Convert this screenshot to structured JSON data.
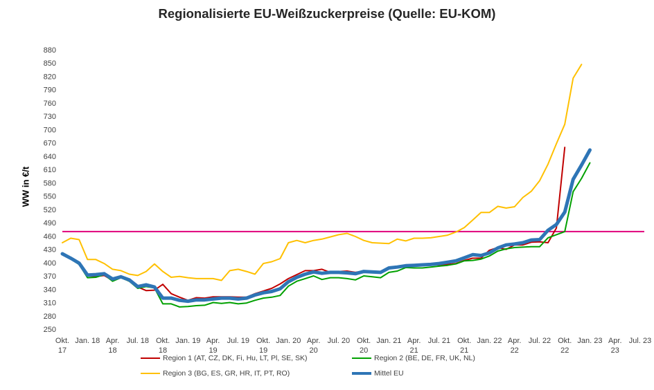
{
  "chart_data": {
    "type": "line",
    "title": "Regionalisierte EU-Weißzuckerpreise (Quelle: EU-KOM)",
    "ylabel": "WW in €/t",
    "ylim": [
      250,
      880
    ],
    "yticks": [
      250,
      280,
      310,
      340,
      370,
      400,
      430,
      460,
      490,
      520,
      550,
      580,
      610,
      640,
      670,
      700,
      730,
      760,
      790,
      820,
      850,
      880
    ],
    "xlim": [
      0,
      69
    ],
    "xticks": [
      {
        "pos": 0,
        "line1": "Okt.",
        "line2": "17"
      },
      {
        "pos": 3,
        "line1": "Jan. 18",
        "line2": ""
      },
      {
        "pos": 6,
        "line1": "Apr.",
        "line2": "18"
      },
      {
        "pos": 9,
        "line1": "Jul. 18",
        "line2": ""
      },
      {
        "pos": 12,
        "line1": "Okt.",
        "line2": "18"
      },
      {
        "pos": 15,
        "line1": "Jan. 19",
        "line2": ""
      },
      {
        "pos": 18,
        "line1": "Apr.",
        "line2": "19"
      },
      {
        "pos": 21,
        "line1": "Jul. 19",
        "line2": ""
      },
      {
        "pos": 24,
        "line1": "Okt.",
        "line2": "19"
      },
      {
        "pos": 27,
        "line1": "Jan. 20",
        "line2": ""
      },
      {
        "pos": 30,
        "line1": "Apr.",
        "line2": "20"
      },
      {
        "pos": 33,
        "line1": "Jul. 20",
        "line2": ""
      },
      {
        "pos": 36,
        "line1": "Okt.",
        "line2": "20"
      },
      {
        "pos": 39,
        "line1": "Jan. 21",
        "line2": ""
      },
      {
        "pos": 42,
        "line1": "Apr.",
        "line2": "21"
      },
      {
        "pos": 45,
        "line1": "Jul. 21",
        "line2": ""
      },
      {
        "pos": 48,
        "line1": "Okt.",
        "line2": "21"
      },
      {
        "pos": 51,
        "line1": "Jan. 22",
        "line2": ""
      },
      {
        "pos": 54,
        "line1": "Apr.",
        "line2": "22"
      },
      {
        "pos": 57,
        "line1": "Jul. 22",
        "line2": ""
      },
      {
        "pos": 60,
        "line1": "Okt.",
        "line2": "22"
      },
      {
        "pos": 63,
        "line1": "Jan. 23",
        "line2": ""
      },
      {
        "pos": 66,
        "line1": "Apr.",
        "line2": "23"
      },
      {
        "pos": 69,
        "line1": "Jul. 23",
        "line2": ""
      }
    ],
    "reference_line": {
      "value": 470,
      "color": "#e0007a"
    },
    "series": [
      {
        "name": "Region 1 (AT, CZ, DK, Fi, Hu, LT, Pl, SE, SK)",
        "color": "#c00000",
        "width": 2,
        "values": [
          420,
          410,
          401,
          370,
          369,
          371,
          360,
          367,
          358,
          345,
          337,
          338,
          351,
          330,
          322,
          315,
          321,
          320,
          323,
          323,
          323,
          322,
          322,
          330,
          336,
          342,
          352,
          364,
          373,
          382,
          382,
          385,
          378,
          380,
          381,
          378,
          381,
          379,
          378,
          389,
          390,
          393,
          393,
          394,
          395,
          395,
          396,
          398,
          405,
          410,
          410,
          428,
          434,
          430,
          440,
          440,
          446,
          447,
          445,
          478,
          660
        ]
      },
      {
        "name": "Region 2 (BE, DE, FR, UK, NL)",
        "color": "#00a000",
        "width": 2,
        "values": [
          420,
          408,
          396,
          366,
          367,
          373,
          358,
          366,
          358,
          342,
          346,
          343,
          307,
          307,
          300,
          301,
          303,
          304,
          310,
          308,
          310,
          307,
          309,
          315,
          320,
          322,
          326,
          347,
          358,
          364,
          370,
          362,
          366,
          366,
          364,
          361,
          370,
          368,
          366,
          378,
          381,
          389,
          388,
          388,
          390,
          392,
          394,
          397,
          404,
          405,
          408,
          415,
          426,
          431,
          434,
          435,
          436,
          436,
          456,
          463,
          470,
          560,
          590,
          625
        ]
      },
      {
        "name": "Region 3 (BG, ES, GR, HR, IT, PT, RO)",
        "color": "#ffc000",
        "width": 2,
        "values": [
          445,
          455,
          452,
          407,
          407,
          398,
          385,
          382,
          374,
          371,
          380,
          397,
          380,
          367,
          369,
          366,
          364,
          364,
          364,
          360,
          382,
          385,
          380,
          374,
          398,
          402,
          409,
          445,
          450,
          445,
          450,
          453,
          458,
          463,
          466,
          459,
          450,
          445,
          444,
          443,
          453,
          449,
          455,
          455,
          456,
          459,
          462,
          469,
          479,
          496,
          513,
          513,
          527,
          523,
          526,
          547,
          561,
          585,
          622,
          668,
          712,
          816,
          847
        ]
      },
      {
        "name": "Mittel EU",
        "color": "#2e75b6",
        "width": 5,
        "values": [
          420,
          410,
          399,
          372,
          373,
          375,
          363,
          368,
          361,
          346,
          350,
          345,
          320,
          320,
          315,
          313,
          316,
          316,
          318,
          320,
          320,
          318,
          320,
          327,
          332,
          335,
          341,
          357,
          367,
          374,
          379,
          376,
          378,
          378,
          377,
          375,
          380,
          379,
          378,
          388,
          390,
          393,
          394,
          395,
          396,
          398,
          401,
          404,
          411,
          418,
          416,
          422,
          433,
          440,
          442,
          445,
          451,
          452,
          473,
          486,
          514,
          588,
          620,
          654
        ]
      }
    ],
    "legend": [
      {
        "label": "Region 1 (AT, CZ, DK, Fi, Hu, LT, Pl, SE, SK)",
        "color": "#c00000"
      },
      {
        "label": "Region 2 (BE, DE, FR, UK, NL)",
        "color": "#00a000"
      },
      {
        "label": "Region 3 (BG, ES, GR, HR, IT, PT, RO)",
        "color": "#ffc000"
      },
      {
        "label": "Mittel EU",
        "color": "#2e75b6"
      }
    ],
    "legend_position": "bottom",
    "grid": false
  }
}
